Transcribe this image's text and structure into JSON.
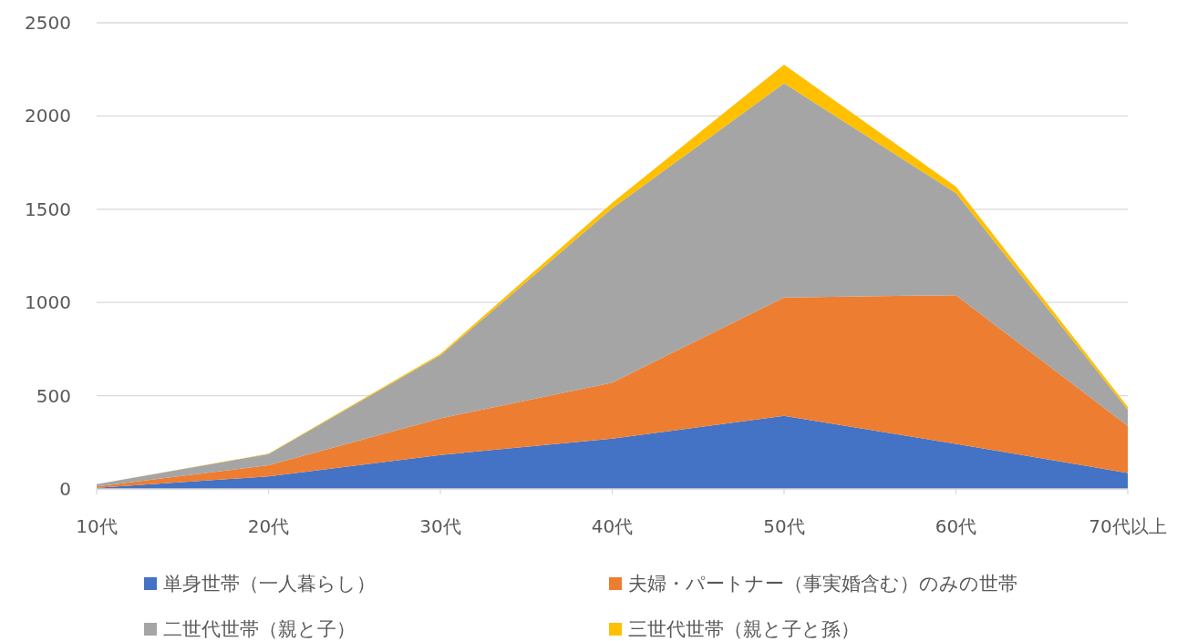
{
  "chart_data": {
    "type": "area",
    "stacked": true,
    "categories": [
      "10代",
      "20代",
      "30代",
      "40代",
      "50代",
      "60代",
      "70代以上"
    ],
    "series": [
      {
        "name": "単身世帯（一人暮らし）",
        "color": "#4472c4",
        "values": [
          6,
          67,
          182,
          270,
          392,
          242,
          86
        ]
      },
      {
        "name": "夫婦・パートナー（事実婚含む）のみの世帯",
        "color": "#ed7d31",
        "values": [
          7,
          60,
          197,
          300,
          635,
          797,
          252
        ]
      },
      {
        "name": "二世代世帯（親と子）",
        "color": "#a5a5a5",
        "values": [
          13,
          60,
          337,
          935,
          1148,
          548,
          87
        ]
      },
      {
        "name": "三世代世帯（親と子と孫）",
        "color": "#ffc000",
        "values": [
          0,
          2,
          8,
          30,
          100,
          34,
          16
        ]
      }
    ],
    "ylim": [
      0,
      2500
    ],
    "yticks": [
      0,
      500,
      1000,
      1500,
      2000,
      2500
    ],
    "grid": "y",
    "legend": "bottom"
  }
}
